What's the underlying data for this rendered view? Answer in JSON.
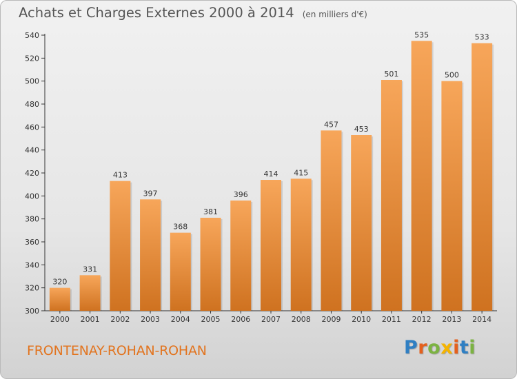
{
  "header": {
    "title": "Achats et Charges Externes 2000 à 2014",
    "unit": "(en milliers d'€)"
  },
  "footer": {
    "town": "FRONTENAY-ROHAN-ROHAN",
    "logo": "Proxiti"
  },
  "colors": {
    "bar_light": "#f7a65a",
    "bar_dark": "#cf7220",
    "logo_letters": [
      "#2f7fc3",
      "#e4601d",
      "#7cb342",
      "#f5b400",
      "#e4601d",
      "#2f7fc3",
      "#7cb342"
    ]
  },
  "chart_data": {
    "type": "bar",
    "title": "Achats et Charges Externes 2000 à 2014",
    "subtitle": "(en milliers d'€)",
    "categories": [
      "2000",
      "2001",
      "2002",
      "2003",
      "2004",
      "2005",
      "2006",
      "2007",
      "2008",
      "2009",
      "2010",
      "2011",
      "2012",
      "2013",
      "2014"
    ],
    "values": [
      320,
      331,
      413,
      397,
      368,
      381,
      396,
      414,
      415,
      457,
      453,
      501,
      535,
      500,
      533
    ],
    "ylim": [
      300,
      540
    ],
    "yticks": [
      300,
      320,
      340,
      360,
      380,
      400,
      420,
      440,
      460,
      480,
      500,
      520,
      540
    ],
    "grid": false,
    "legend": "none"
  }
}
